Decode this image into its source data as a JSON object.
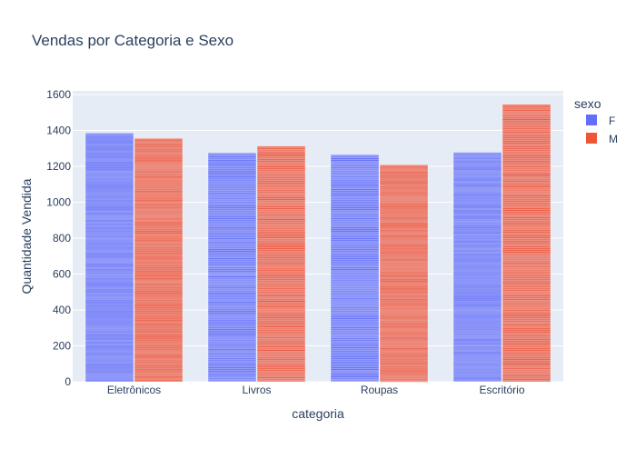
{
  "chart_data": {
    "type": "bar",
    "title": "Vendas por Categoria e Sexo",
    "xlabel": "categoria",
    "ylabel": "Quantidade Vendida",
    "categories": [
      "Eletrônicos",
      "Livros",
      "Roupas",
      "Escritório"
    ],
    "series": [
      {
        "name": "F",
        "values": [
          1385,
          1275,
          1265,
          1278
        ],
        "color": "#636efa"
      },
      {
        "name": "M",
        "values": [
          1355,
          1312,
          1208,
          1545
        ],
        "color": "#ef553b"
      }
    ],
    "ylim": [
      0,
      1620
    ],
    "yticks": [
      0,
      200,
      400,
      600,
      800,
      1000,
      1200,
      1400,
      1600
    ],
    "grid": true,
    "plot_background": "#e5ecf6",
    "legend": {
      "title": "sexo",
      "placement": "right"
    },
    "bar_style": "stacked-thin-segments"
  }
}
